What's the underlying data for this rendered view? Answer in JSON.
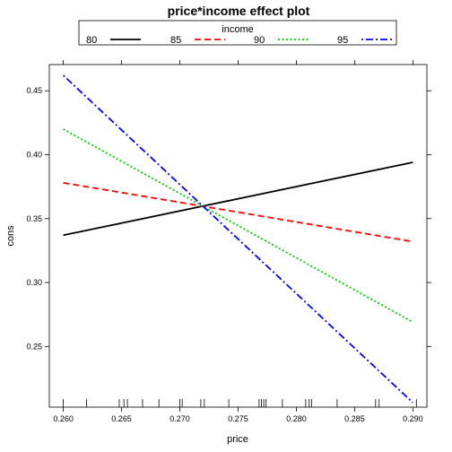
{
  "chart_data": {
    "type": "line",
    "title": "price*income effect plot",
    "xlabel": "price",
    "ylabel": "cons",
    "legend_title": "income",
    "legend_position": "top",
    "xlim": [
      0.2588,
      0.2912
    ],
    "ylim": [
      0.2025,
      0.4705
    ],
    "x_ticks": [
      "0.260",
      "0.265",
      "0.270",
      "0.275",
      "0.280",
      "0.285",
      "0.290"
    ],
    "y_ticks": [
      "0.25",
      "0.30",
      "0.35",
      "0.40",
      "0.45"
    ],
    "grid": false,
    "series": [
      {
        "name": "80",
        "color": "#000000",
        "dash": "solid",
        "x": [
          0.26,
          0.29
        ],
        "y": [
          0.337,
          0.394
        ]
      },
      {
        "name": "85",
        "color": "#ff0000",
        "dash": "dashed",
        "x": [
          0.26,
          0.29
        ],
        "y": [
          0.378,
          0.332
        ]
      },
      {
        "name": "90",
        "color": "#00cd00",
        "dash": "dotted",
        "x": [
          0.26,
          0.29
        ],
        "y": [
          0.42,
          0.269
        ]
      },
      {
        "name": "95",
        "color": "#0000ff",
        "dash": "dotdash",
        "x": [
          0.26,
          0.29
        ],
        "y": [
          0.462,
          0.206
        ]
      }
    ],
    "rug_x": [
      0.26,
      0.262,
      0.2648,
      0.2652,
      0.2655,
      0.2668,
      0.2682,
      0.27,
      0.2702,
      0.2718,
      0.2721,
      0.2742,
      0.2768,
      0.277,
      0.2772,
      0.2774,
      0.2788,
      0.2808,
      0.2811,
      0.2813,
      0.2835,
      0.2868,
      0.2871,
      0.2903
    ]
  }
}
